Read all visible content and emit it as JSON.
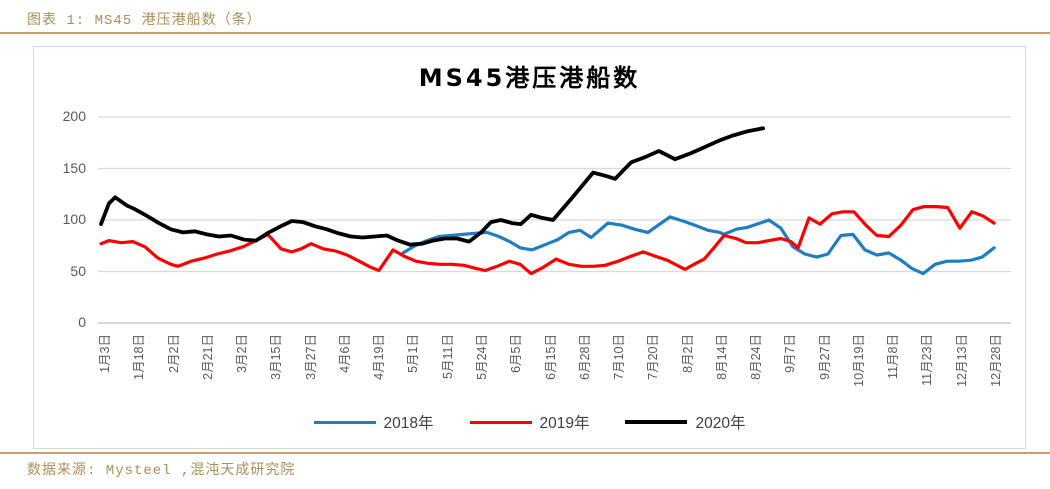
{
  "header": {
    "caption": "图表 1: MS45 港压港船数（条）"
  },
  "footer": {
    "source": "数据来源: Mysteel ,混沌天成研究院"
  },
  "colors": {
    "accent_gold": "#AE8E58",
    "rule_gold": "#C9A063",
    "grid": "#D9D9D9",
    "axis_line": "#BFBFBF",
    "axis_text": "#595959",
    "background": "#FFFFFF"
  },
  "chart_data": {
    "type": "line",
    "title": "MS45港压港船数",
    "xlabel": "",
    "ylabel": "",
    "ylim": [
      0,
      200
    ],
    "y_ticks": [
      0,
      50,
      100,
      150,
      200
    ],
    "grid": true,
    "legend_position": "bottom",
    "x_labels": [
      "1月3日",
      "1月18日",
      "2月2日",
      "2月21日",
      "3月2日",
      "3月15日",
      "3月27日",
      "4月6日",
      "4月19日",
      "5月1日",
      "5月11日",
      "5月24日",
      "6月5日",
      "6月15日",
      "6月28日",
      "7月10日",
      "7月20日",
      "8月2日",
      "8月14日",
      "8月24日",
      "9月7日",
      "9月27日",
      "10月19日",
      "11月8日",
      "11月23日",
      "12月13日",
      "12月28日"
    ],
    "x_unit": "tick index (0 = 1月3日 ... 26 = 12月28日)",
    "series": [
      {
        "key": "2018",
        "name": "2018年",
        "color": "#1F7EC2",
        "width": 3.2,
        "points": [
          [
            8.81,
            68
          ],
          [
            9.16,
            75
          ],
          [
            9.51,
            80
          ],
          [
            9.86,
            84
          ],
          [
            10.21,
            85
          ],
          [
            10.56,
            86
          ],
          [
            10.91,
            87
          ],
          [
            11.26,
            88
          ],
          [
            11.61,
            84
          ],
          [
            11.93,
            79
          ],
          [
            12.23,
            73
          ],
          [
            12.58,
            71
          ],
          [
            12.96,
            76
          ],
          [
            13.33,
            81
          ],
          [
            13.66,
            88
          ],
          [
            13.98,
            90
          ],
          [
            14.3,
            83
          ],
          [
            14.79,
            97
          ],
          [
            15.2,
            95
          ],
          [
            15.58,
            91
          ],
          [
            15.96,
            88
          ],
          [
            16.6,
            103
          ],
          [
            16.98,
            99
          ],
          [
            17.33,
            95
          ],
          [
            17.71,
            90
          ],
          [
            18.06,
            88
          ],
          [
            18.18,
            86
          ],
          [
            18.53,
            91
          ],
          [
            18.88,
            93
          ],
          [
            19.23,
            97
          ],
          [
            19.49,
            100
          ],
          [
            19.84,
            92
          ],
          [
            20.19,
            74
          ],
          [
            20.54,
            67
          ],
          [
            20.89,
            64
          ],
          [
            21.21,
            67
          ],
          [
            21.59,
            85
          ],
          [
            21.94,
            86
          ],
          [
            22.29,
            71
          ],
          [
            22.64,
            66
          ],
          [
            22.99,
            68
          ],
          [
            23.34,
            61
          ],
          [
            23.66,
            53
          ],
          [
            23.99,
            48
          ],
          [
            24.34,
            57
          ],
          [
            24.69,
            60
          ],
          [
            25.04,
            60
          ],
          [
            25.39,
            61
          ],
          [
            25.71,
            64
          ],
          [
            26.06,
            73
          ]
        ]
      },
      {
        "key": "2019",
        "name": "2019年",
        "color": "#FE0000",
        "width": 3.2,
        "points": [
          [
            0,
            77
          ],
          [
            0.23,
            80
          ],
          [
            0.58,
            78
          ],
          [
            0.93,
            79
          ],
          [
            1.28,
            74
          ],
          [
            1.66,
            63
          ],
          [
            2.04,
            57
          ],
          [
            2.25,
            55
          ],
          [
            2.63,
            60
          ],
          [
            3.01,
            63
          ],
          [
            3.39,
            67
          ],
          [
            3.76,
            70
          ],
          [
            4.14,
            74
          ],
          [
            4.52,
            80
          ],
          [
            4.87,
            86
          ],
          [
            5.25,
            72
          ],
          [
            5.57,
            69
          ],
          [
            5.84,
            72
          ],
          [
            6.13,
            77
          ],
          [
            6.48,
            72
          ],
          [
            6.83,
            70
          ],
          [
            7.18,
            66
          ],
          [
            7.53,
            60
          ],
          [
            7.88,
            54
          ],
          [
            8.11,
            51
          ],
          [
            8.52,
            71
          ],
          [
            8.84,
            65
          ],
          [
            9.19,
            60
          ],
          [
            9.54,
            58
          ],
          [
            9.89,
            57
          ],
          [
            10.24,
            57
          ],
          [
            10.59,
            56
          ],
          [
            10.94,
            53
          ],
          [
            11.21,
            51
          ],
          [
            11.56,
            55
          ],
          [
            11.91,
            60
          ],
          [
            12.23,
            57
          ],
          [
            12.55,
            48
          ],
          [
            12.9,
            54
          ],
          [
            13.28,
            62
          ],
          [
            13.66,
            57
          ],
          [
            14.01,
            55
          ],
          [
            14.36,
            55
          ],
          [
            14.71,
            56
          ],
          [
            15.09,
            60
          ],
          [
            15.47,
            65
          ],
          [
            15.82,
            69
          ],
          [
            16.17,
            65
          ],
          [
            16.52,
            61
          ],
          [
            16.81,
            56
          ],
          [
            17.04,
            52
          ],
          [
            17.36,
            58
          ],
          [
            17.6,
            62
          ],
          [
            17.86,
            72
          ],
          [
            18.18,
            85
          ],
          [
            18.53,
            82
          ],
          [
            18.82,
            78
          ],
          [
            19.17,
            78
          ],
          [
            19.49,
            80
          ],
          [
            19.84,
            82
          ],
          [
            20.13,
            79
          ],
          [
            20.34,
            73
          ],
          [
            20.66,
            102
          ],
          [
            20.98,
            96
          ],
          [
            21.33,
            106
          ],
          [
            21.65,
            108
          ],
          [
            21.97,
            108
          ],
          [
            22.32,
            95
          ],
          [
            22.64,
            85
          ],
          [
            22.99,
            84
          ],
          [
            23.34,
            95
          ],
          [
            23.69,
            110
          ],
          [
            24.01,
            113
          ],
          [
            24.39,
            113
          ],
          [
            24.71,
            112
          ],
          [
            25.06,
            92
          ],
          [
            25.41,
            108
          ],
          [
            25.73,
            104
          ],
          [
            26.06,
            97
          ]
        ]
      },
      {
        "key": "2020",
        "name": "2020年",
        "color": "#000000",
        "width": 3.8,
        "points": [
          [
            0,
            96
          ],
          [
            0.23,
            116
          ],
          [
            0.41,
            122
          ],
          [
            0.76,
            114
          ],
          [
            0.96,
            111
          ],
          [
            1.34,
            104
          ],
          [
            1.69,
            97
          ],
          [
            2.04,
            91
          ],
          [
            2.39,
            88
          ],
          [
            2.74,
            89
          ],
          [
            3.09,
            86
          ],
          [
            3.44,
            84
          ],
          [
            3.79,
            85
          ],
          [
            4.17,
            81
          ],
          [
            4.52,
            80
          ],
          [
            4.9,
            88
          ],
          [
            5.25,
            94
          ],
          [
            5.57,
            99
          ],
          [
            5.89,
            98
          ],
          [
            6.24,
            94
          ],
          [
            6.59,
            91
          ],
          [
            6.94,
            87
          ],
          [
            7.29,
            84
          ],
          [
            7.64,
            83
          ],
          [
            7.99,
            84
          ],
          [
            8.34,
            85
          ],
          [
            8.67,
            80
          ],
          [
            9.02,
            76
          ],
          [
            9.37,
            77
          ],
          [
            9.69,
            80
          ],
          [
            10.04,
            82
          ],
          [
            10.39,
            82
          ],
          [
            10.74,
            79
          ],
          [
            11.09,
            88
          ],
          [
            11.38,
            98
          ],
          [
            11.67,
            100
          ],
          [
            11.99,
            97
          ],
          [
            12.25,
            96
          ],
          [
            12.55,
            105
          ],
          [
            12.87,
            102
          ],
          [
            13.19,
            100
          ],
          [
            13.71,
            120
          ],
          [
            14.36,
            146
          ],
          [
            14.71,
            143
          ],
          [
            15,
            140
          ],
          [
            15.47,
            156
          ],
          [
            15.87,
            161
          ],
          [
            16.28,
            167
          ],
          [
            16.75,
            159
          ],
          [
            17.22,
            165
          ],
          [
            17.63,
            171
          ],
          [
            18.03,
            177
          ],
          [
            18.44,
            182
          ],
          [
            18.85,
            186
          ],
          [
            19.32,
            189
          ]
        ]
      }
    ]
  }
}
